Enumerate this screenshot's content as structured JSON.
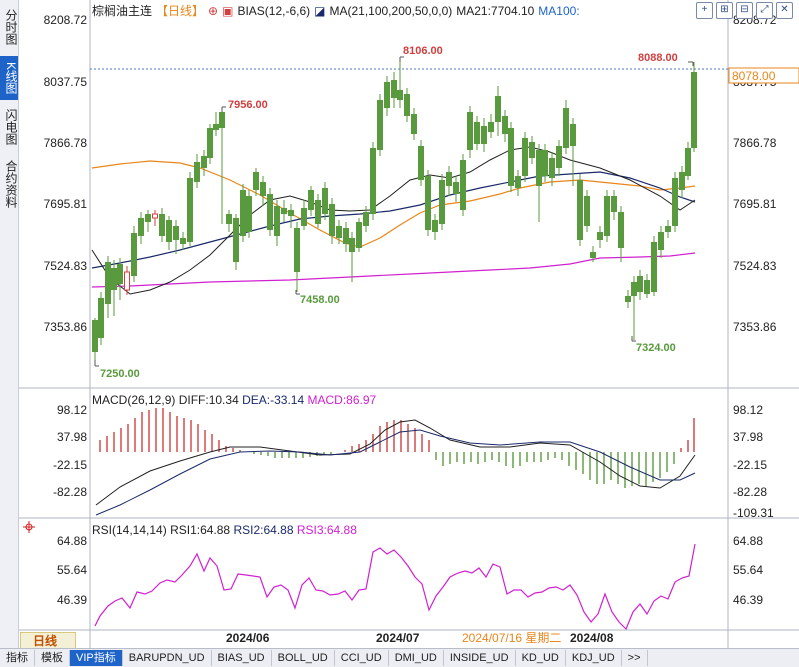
{
  "sidebar": {
    "tabs": [
      {
        "label": "分时图",
        "active": false
      },
      {
        "label": "K线图",
        "active": true
      },
      {
        "label": "闪电图",
        "active": false
      },
      {
        "label": "合约资料",
        "active": false
      }
    ]
  },
  "header": {
    "symbol": "棕榈油主连",
    "period": "【日线】",
    "bias": "BIAS(12,-6,6)",
    "ma": "MA(21,100,200,50,0,0)",
    "ma21": "MA21:7704.10",
    "ma100": "MA100:"
  },
  "toolbar_icons": [
    "add-indicator-icon",
    "zoom-in-icon",
    "zoom-out-icon",
    "expand-icon",
    "close-icon"
  ],
  "macd": {
    "title": "MACD(26,12,9)",
    "diff": "DIFF:10.34",
    "dea": "DEA:-33.14",
    "macd": "MACD:86.97"
  },
  "rsi": {
    "title": "RSI(14,14,14)",
    "rsi1": "RSI1:64.88",
    "rsi2": "RSI2:64.88",
    "rsi3": "RSI3:64.88"
  },
  "price_axis": [
    "8208.72",
    "8037.75",
    "7866.78",
    "7695.81",
    "7524.83",
    "7353.86"
  ],
  "macd_axis": [
    "98.12",
    "37.98",
    "-22.15",
    "-82.28",
    "-109.31"
  ],
  "rsi_axis": [
    "64.88",
    "55.64",
    "46.39"
  ],
  "current_price": "8078.00",
  "annotations": {
    "high_8106": "8106.00",
    "high_8088": "8088.00",
    "high_7956": "7956.00",
    "low_7458": "7458.00",
    "low_7250": "7250.00",
    "low_7324": "7324.00"
  },
  "time_axis": [
    "2024/06",
    "2024/07",
    "2024/07/16 星期二",
    "2024/08"
  ],
  "period_button": "日线",
  "bottom_tabs": [
    "指标",
    "模板",
    "VIP指标",
    "BARUPDN_UD",
    "BIAS_UD",
    "BOLL_UD",
    "CCI_UD",
    "DMI_UD",
    "INSIDE_UD",
    "KD_UD",
    "KDJ_UD",
    ">>"
  ],
  "colors": {
    "up": "#d04040",
    "down": "#5a9a3e",
    "ma_slow": "#1a2a6a",
    "ma_mid": "#e8861a",
    "ma_long": "#d020d0",
    "ma_black": "#202020",
    "price_tag": "#e8861a"
  }
}
